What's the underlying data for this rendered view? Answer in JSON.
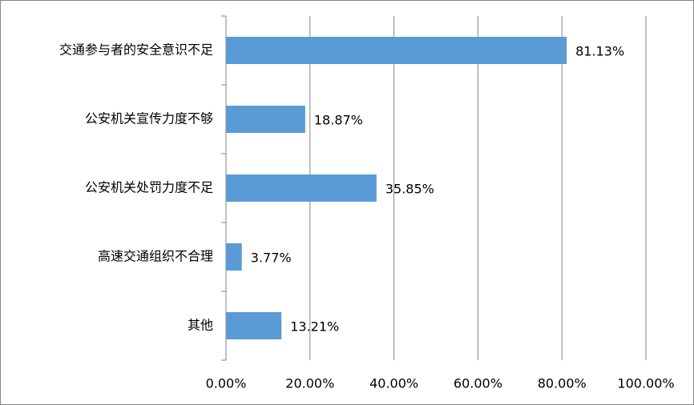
{
  "chart_data": {
    "type": "bar",
    "orientation": "horizontal",
    "categories": [
      "交通参与者的安全意识不足",
      "公安机关宣传力度不够",
      "公安机关处罚力度不足",
      "高速交通组织不合理",
      "其他"
    ],
    "values": [
      81.13,
      18.87,
      35.85,
      3.77,
      13.21
    ],
    "value_labels": [
      "81.13%",
      "18.87%",
      "35.85%",
      "3.77%",
      "13.21%"
    ],
    "color": "#5b9bd5",
    "xlim": [
      0,
      100
    ],
    "xticks": [
      {
        "value": 0,
        "label": "0.00%"
      },
      {
        "value": 20,
        "label": "20.00%"
      },
      {
        "value": 40,
        "label": "40.00%"
      },
      {
        "value": 60,
        "label": "60.00%"
      },
      {
        "value": 80,
        "label": "80.00%"
      },
      {
        "value": 100,
        "label": "100.00%"
      }
    ],
    "grid": true
  }
}
